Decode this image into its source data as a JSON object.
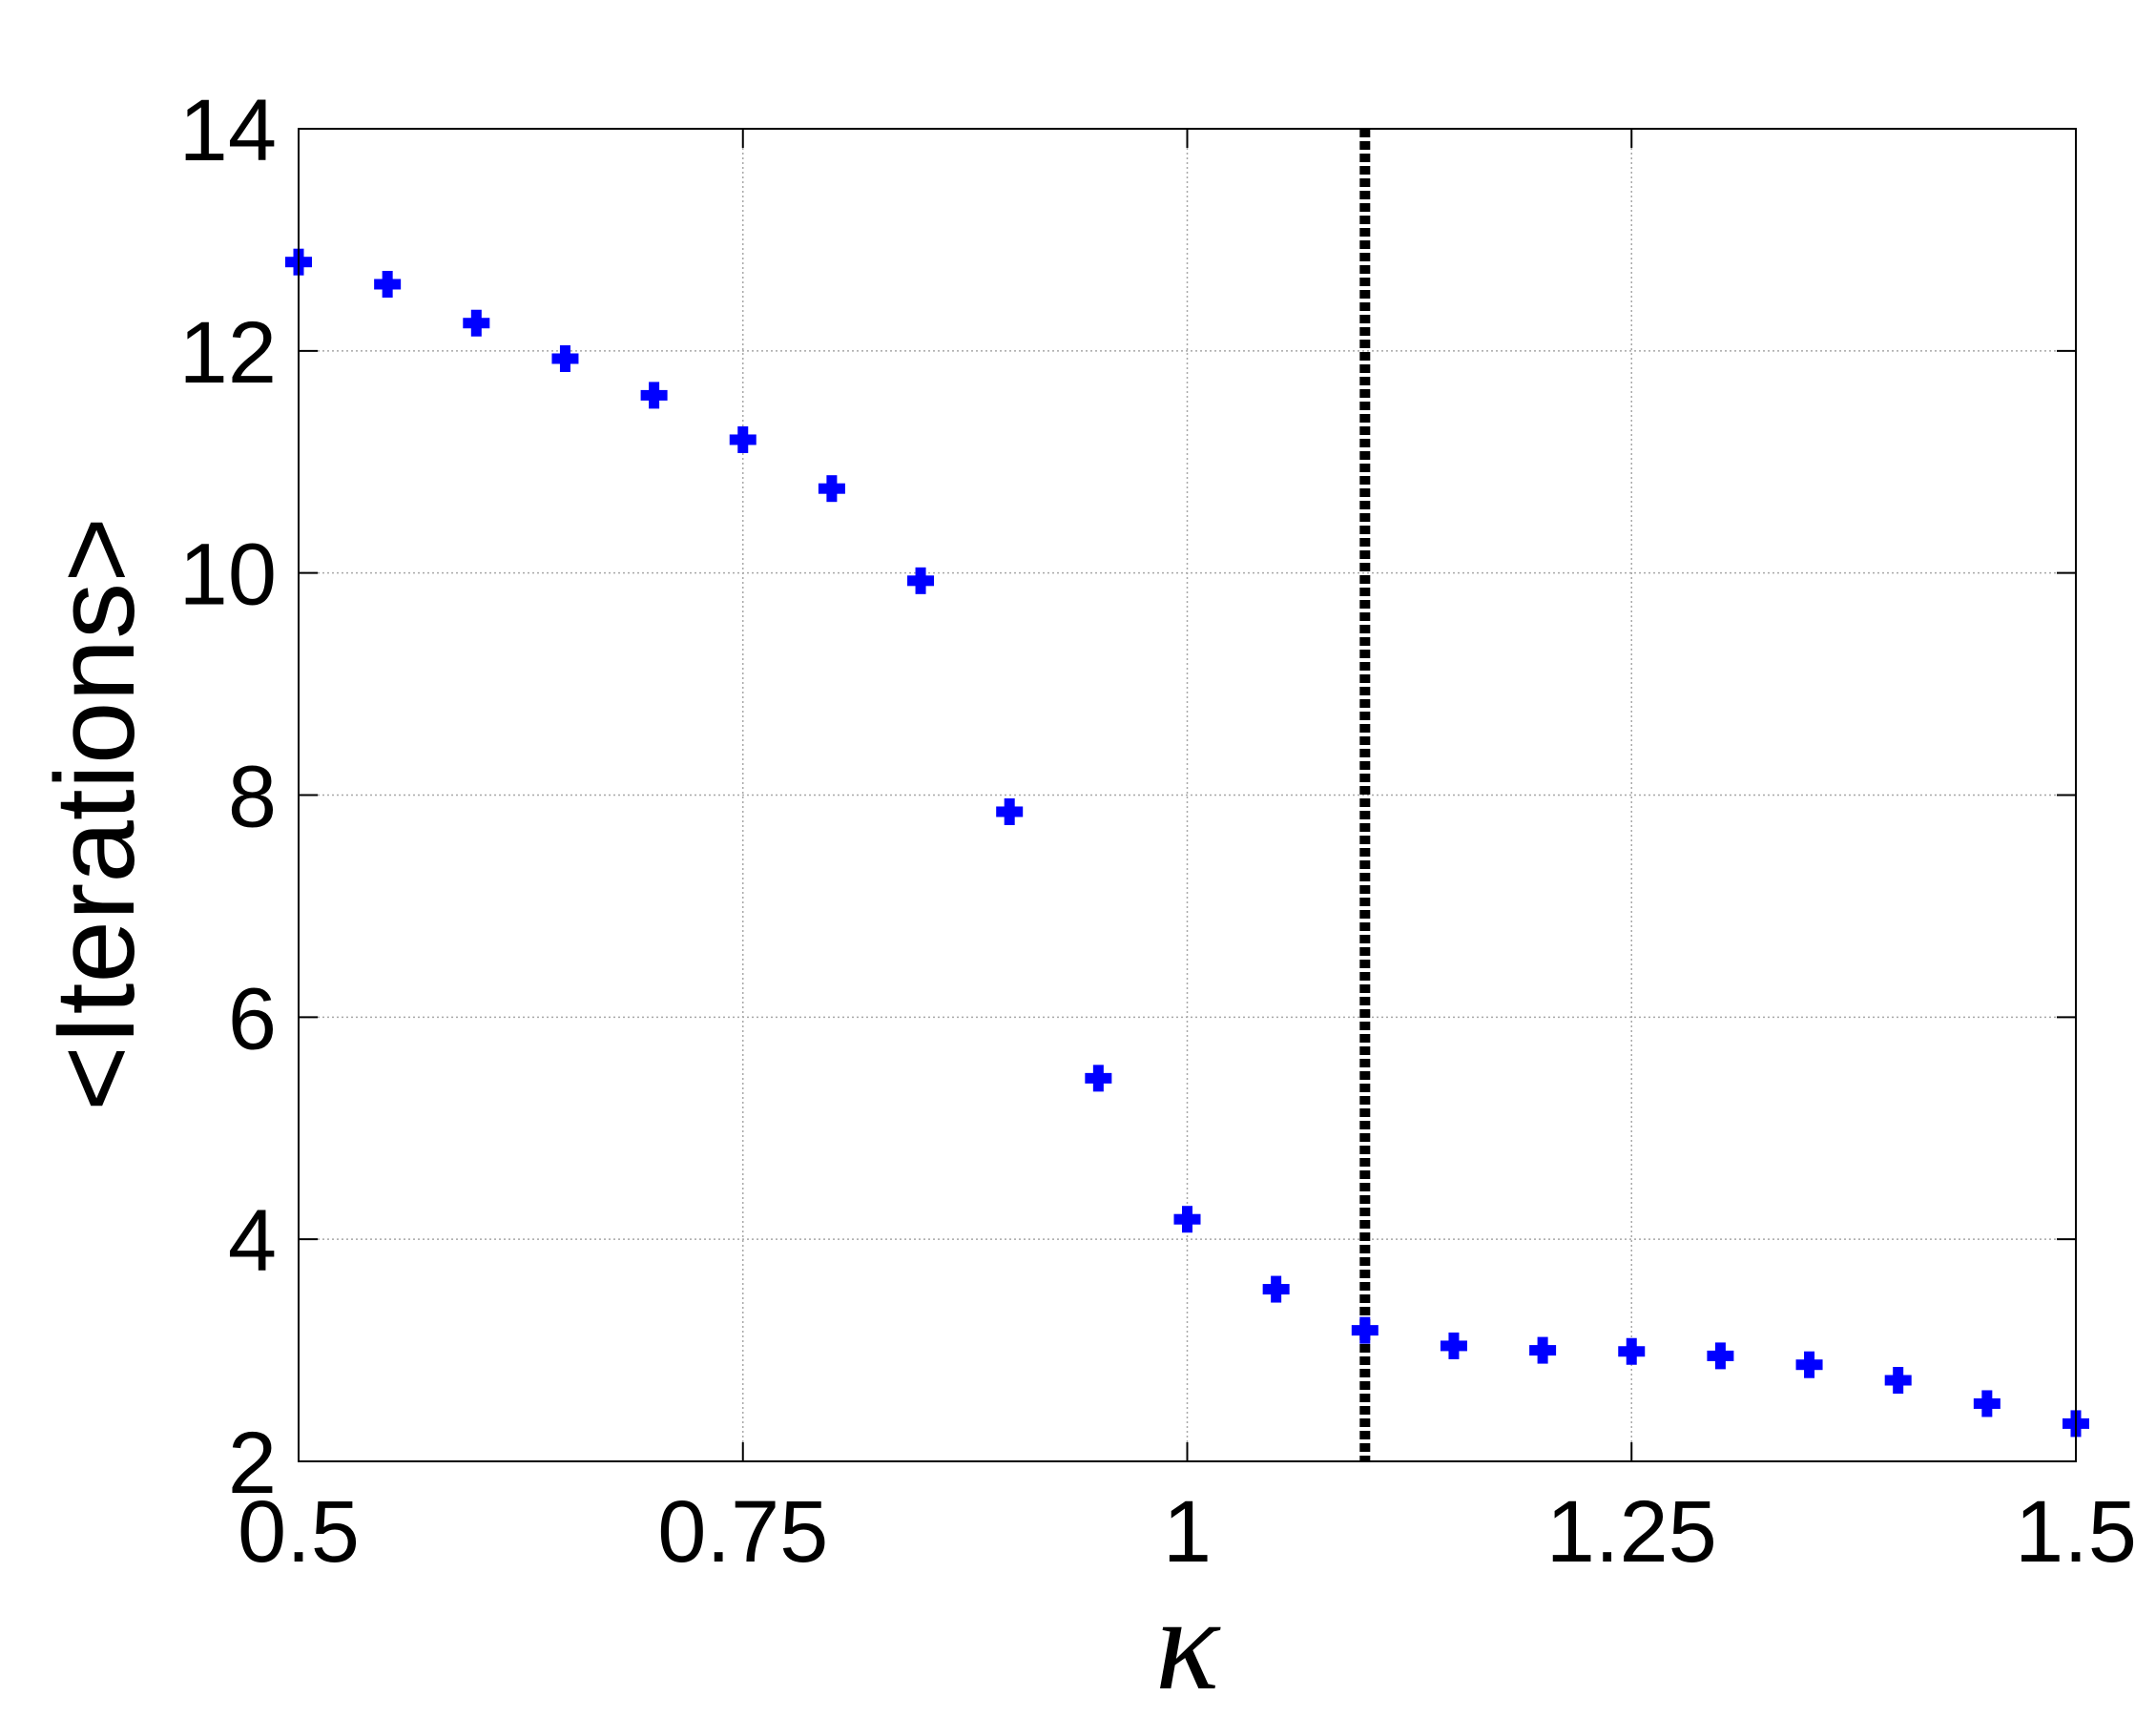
{
  "chart_data": {
    "type": "scatter",
    "title": "",
    "xlabel": "κ",
    "ylabel": "<Iterations>",
    "xlim": [
      0.5,
      1.5
    ],
    "ylim": [
      2,
      14
    ],
    "xticks": [
      0.5,
      0.75,
      1,
      1.25,
      1.5
    ],
    "xtick_labels": [
      "0.5",
      "0.75",
      "1",
      "1.25",
      "1.5"
    ],
    "yticks": [
      2,
      4,
      6,
      8,
      10,
      12,
      14
    ],
    "ytick_labels": [
      "2",
      "4",
      "6",
      "8",
      "10",
      "12",
      "14"
    ],
    "grid": true,
    "marker": "plus",
    "marker_color": "#0000ff",
    "series": [
      {
        "x": [
          0.5,
          0.55,
          0.6,
          0.65,
          0.7,
          0.75,
          0.8,
          0.85,
          0.9,
          0.95,
          1.0,
          1.05,
          1.1,
          1.15,
          1.2,
          1.25,
          1.3,
          1.35,
          1.4,
          1.45,
          1.5
        ],
        "y": [
          12.8,
          12.6,
          12.25,
          11.93,
          11.6,
          11.2,
          10.76,
          9.93,
          7.85,
          5.45,
          4.18,
          3.55,
          3.18,
          3.04,
          3.0,
          2.99,
          2.95,
          2.87,
          2.73,
          2.52,
          2.34
        ]
      }
    ],
    "reference_line": {
      "x": 1.1,
      "style": "dashed",
      "color": "#000000"
    }
  }
}
